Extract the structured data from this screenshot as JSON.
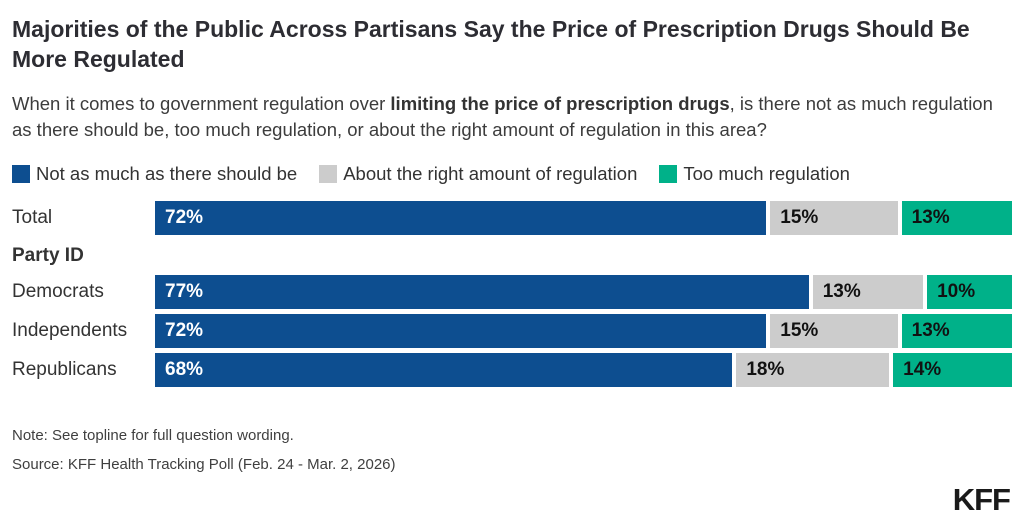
{
  "header": {
    "title": "Majorities of the Public Across Partisans Say the Price of Prescription Drugs Should Be More Regulated",
    "subtitle_part1": "When it comes to government regulation over ",
    "subtitle_bold": "limiting the price of prescription drugs",
    "subtitle_part2": ", is there not as much regulation as there should be, too much regulation, or about the right amount of regulation in this area?"
  },
  "legend": [
    {
      "label": "Not as much as there should be",
      "color": "#0d4e90"
    },
    {
      "label": "About the right amount of regulation",
      "color": "#cccccc"
    },
    {
      "label": "Too much regulation",
      "color": "#00b189"
    }
  ],
  "chart_data": {
    "type": "bar",
    "orientation": "horizontal",
    "stacked": true,
    "xlim": [
      0,
      100
    ],
    "value_suffix": "%",
    "legend_position": "top",
    "categories": [
      "Total",
      "Democrats",
      "Independents",
      "Republicans"
    ],
    "section_label": "Party ID",
    "series": [
      {
        "name": "Not as much as there should be",
        "color": "#0d4e90",
        "values": [
          72,
          77,
          72,
          68
        ]
      },
      {
        "name": "About the right amount of regulation",
        "color": "#cccccc",
        "values": [
          15,
          13,
          15,
          18
        ]
      },
      {
        "name": "Too much regulation",
        "color": "#00b189",
        "values": [
          13,
          10,
          13,
          14
        ]
      }
    ],
    "rows": [
      {
        "type": "bar",
        "label": "Total",
        "values": [
          72,
          15,
          13
        ]
      },
      {
        "type": "section",
        "label": "Party ID"
      },
      {
        "type": "bar",
        "label": "Democrats",
        "values": [
          77,
          13,
          10
        ]
      },
      {
        "type": "bar",
        "label": "Independents",
        "values": [
          72,
          15,
          13
        ]
      },
      {
        "type": "bar",
        "label": "Republicans",
        "values": [
          68,
          18,
          14
        ]
      }
    ]
  },
  "colors": {
    "segment_colors": [
      "#0d4e90",
      "#cccccc",
      "#00b189"
    ],
    "label_on_dark": "#ffffff",
    "label_on_light": "#111111"
  },
  "footer": {
    "note": "Note: See topline for full question wording.",
    "source": "Source: KFF Health Tracking Poll (Feb. 24 - Mar. 2, 2026)",
    "logo": "KFF"
  }
}
